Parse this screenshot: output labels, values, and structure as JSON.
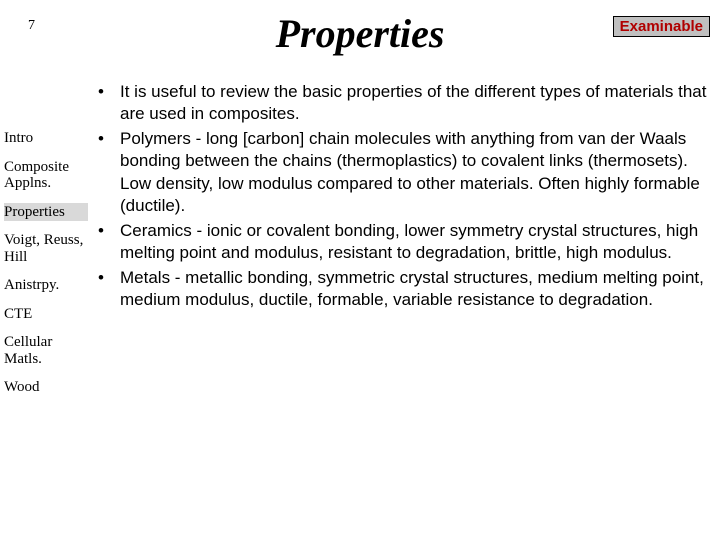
{
  "page_number": "7",
  "badge": "Examinable",
  "title": "Properties",
  "sidebar": {
    "items": [
      {
        "label": "Intro",
        "active": false
      },
      {
        "label": "Composite Applns.",
        "active": false
      },
      {
        "label": "Properties",
        "active": true
      },
      {
        "label": "Voigt, Reuss, Hill",
        "active": false
      },
      {
        "label": "Anistrpy.",
        "active": false
      },
      {
        "label": "CTE",
        "active": false
      },
      {
        "label": "Cellular Matls.",
        "active": false
      },
      {
        "label": "Wood",
        "active": false
      }
    ]
  },
  "bullets": [
    "It is useful to review the basic properties of the different types of materials that are used in composites.",
    "Polymers - long [carbon] chain molecules with anything from van der Waals bonding between the chains (thermoplastics) to covalent links (thermosets).  Low density, low modulus compared to other materials. Often highly formable (ductile).",
    "Ceramics - ionic or covalent bonding, lower symmetry crystal structures, high melting point and modulus, resistant to degradation, brittle, high modulus.",
    "Metals - metallic bonding, symmetric crystal structures, medium melting point, medium modulus, ductile, formable, variable resistance to degradation."
  ],
  "colors": {
    "badge_bg": "#c0c0c0",
    "badge_text": "#b00000",
    "sidebar_active_bg": "#d9d9d9",
    "text": "#000000",
    "background": "#ffffff"
  }
}
